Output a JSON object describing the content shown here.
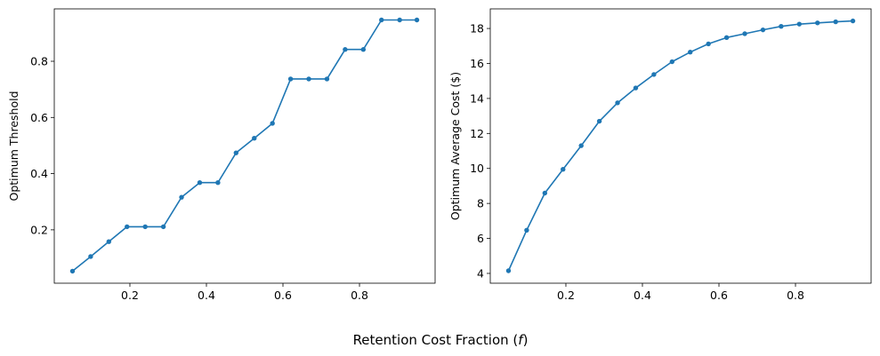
{
  "figure": {
    "xlabel": "Retention Cost Fraction (",
    "xlabel_symbol": "f",
    "xlabel_close": ")"
  },
  "chart_data": [
    {
      "type": "line",
      "title": "",
      "xlabel": "",
      "ylabel": "Optimum Threshold",
      "xlim": [
        0.0024,
        0.9976
      ],
      "ylim": [
        0.01,
        0.9865
      ],
      "xticks": [
        0.2,
        0.4,
        0.6,
        0.8
      ],
      "yticks": [
        0.2,
        0.4,
        0.6,
        0.8
      ],
      "x": [
        0.05,
        0.0975,
        0.145,
        0.1925,
        0.24,
        0.2875,
        0.335,
        0.3825,
        0.43,
        0.4775,
        0.525,
        0.5725,
        0.62,
        0.6675,
        0.715,
        0.7625,
        0.81,
        0.8575,
        0.905,
        0.95
      ],
      "series": [
        {
          "values": [
            0.053,
            0.105,
            0.158,
            0.211,
            0.211,
            0.211,
            0.316,
            0.368,
            0.368,
            0.474,
            0.526,
            0.579,
            0.737,
            0.737,
            0.737,
            0.842,
            0.842,
            0.947,
            0.947,
            0.947
          ]
        }
      ],
      "color": "#1f77b4",
      "grid": false,
      "legend": "none"
    },
    {
      "type": "line",
      "title": "",
      "xlabel": "",
      "ylabel": "Optimum Average Cost ($)",
      "xlim": [
        0.0024,
        0.9976
      ],
      "ylim": [
        3.44,
        19.12
      ],
      "xticks": [
        0.2,
        0.4,
        0.6,
        0.8
      ],
      "yticks": [
        4,
        6,
        8,
        10,
        12,
        14,
        16,
        18
      ],
      "x": [
        0.05,
        0.0975,
        0.145,
        0.1925,
        0.24,
        0.2875,
        0.335,
        0.3825,
        0.43,
        0.4775,
        0.525,
        0.5725,
        0.62,
        0.6675,
        0.715,
        0.7625,
        0.81,
        0.8575,
        0.905,
        0.95
      ],
      "series": [
        {
          "values": [
            4.15,
            6.47,
            8.59,
            9.95,
            11.3,
            12.7,
            13.75,
            14.6,
            15.37,
            16.1,
            16.65,
            17.12,
            17.48,
            17.7,
            17.92,
            18.12,
            18.25,
            18.32,
            18.38,
            18.43
          ]
        }
      ],
      "color": "#1f77b4",
      "grid": false,
      "legend": "none"
    }
  ]
}
